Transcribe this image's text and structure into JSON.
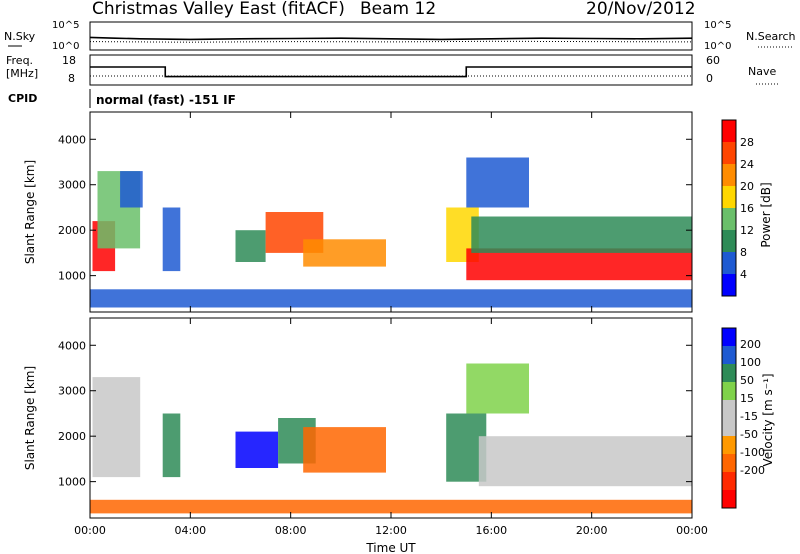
{
  "header": {
    "station": "Christmas Valley East (fitACF)",
    "beam": "Beam 12",
    "date": "20/Nov/2012"
  },
  "colors": {
    "power_scale": [
      "#0000ff",
      "#1e5ad2",
      "#2e8b57",
      "#6abf6a",
      "#ffd700",
      "#ff8c00",
      "#ff4500",
      "#ff0000"
    ],
    "velocity_scale": [
      "#0000ff",
      "#1e5ad2",
      "#2e8b57",
      "#7fd24a",
      "#c8c8c8",
      "#c8c8c8",
      "#ff9900",
      "#ff6600",
      "#ff2a00",
      "#ff0000"
    ]
  },
  "chart_data": [
    {
      "id": "nsky-nsearch",
      "type": "line",
      "left_label": "N.Sky",
      "right_label": "N.Search",
      "left_ticks": [
        "10^5",
        "10^0"
      ],
      "right_ticks": [
        "10^5",
        "10^0"
      ],
      "series": [
        {
          "name": "N.Sky",
          "style": "solid",
          "x": [
            0,
            1,
            2,
            4,
            6,
            8,
            10,
            12,
            14,
            16,
            18,
            20,
            22,
            24
          ],
          "y": [
            0.45,
            0.42,
            0.4,
            0.38,
            0.4,
            0.41,
            0.42,
            0.4,
            0.38,
            0.4,
            0.42,
            0.41,
            0.4,
            0.42
          ]
        },
        {
          "name": "N.Search",
          "style": "dotted",
          "x": [
            0,
            4,
            8,
            12,
            16,
            20,
            24
          ],
          "y": [
            0.3,
            0.28,
            0.3,
            0.29,
            0.31,
            0.3,
            0.29
          ]
        }
      ]
    },
    {
      "id": "freq-nave",
      "type": "line",
      "left_label": "Freq.",
      "left_unit": "[MHz]",
      "right_label": "Nave",
      "left_ticks": [
        "18",
        "8"
      ],
      "right_ticks": [
        "60",
        "0"
      ],
      "series": [
        {
          "name": "Freq.",
          "style": "solid",
          "x": [
            0,
            3.0,
            3.0,
            15.0,
            15.0,
            24
          ],
          "y": [
            14,
            14,
            10.8,
            10.8,
            14,
            14
          ]
        },
        {
          "name": "Nave",
          "style": "dotted",
          "x": [
            0,
            24
          ],
          "y": [
            18,
            18
          ]
        }
      ]
    },
    {
      "id": "cpid",
      "type": "table",
      "label": "CPID",
      "text": "normal (fast) -151 IF"
    },
    {
      "id": "power",
      "type": "heatmap",
      "ylabel": "Slant Range [km]",
      "yticks": [
        1000,
        2000,
        3000,
        4000
      ],
      "ylim": [
        200,
        4600
      ],
      "xlim": [
        0,
        24
      ],
      "colorbar_label": "Power [dB]",
      "colorbar_ticks": [
        4,
        8,
        12,
        16,
        20,
        24,
        28
      ],
      "colorbar_range": [
        0,
        32
      ],
      "regions": [
        {
          "x0": 0.1,
          "x1": 1.0,
          "y0": 1100,
          "y1": 2200,
          "v": 28
        },
        {
          "x0": 0.3,
          "x1": 2.0,
          "y0": 1600,
          "y1": 3300,
          "v": 12
        },
        {
          "x0": 1.2,
          "x1": 2.1,
          "y0": 2500,
          "y1": 3300,
          "v": 6
        },
        {
          "x0": 2.9,
          "x1": 3.6,
          "y0": 1100,
          "y1": 2500,
          "v": 6
        },
        {
          "x0": 5.8,
          "x1": 7.0,
          "y0": 1300,
          "y1": 2000,
          "v": 8
        },
        {
          "x0": 7.0,
          "x1": 9.3,
          "y0": 1500,
          "y1": 2400,
          "v": 26
        },
        {
          "x0": 8.5,
          "x1": 11.8,
          "y0": 1200,
          "y1": 1800,
          "v": 22
        },
        {
          "x0": 14.2,
          "x1": 15.5,
          "y0": 1300,
          "y1": 2500,
          "v": 18
        },
        {
          "x0": 15.0,
          "x1": 24.0,
          "y0": 900,
          "y1": 1600,
          "v": 28
        },
        {
          "x0": 15.2,
          "x1": 24.0,
          "y0": 1500,
          "y1": 2300,
          "v": 10
        },
        {
          "x0": 15.0,
          "x1": 17.5,
          "y0": 2500,
          "y1": 3600,
          "v": 6
        },
        {
          "x0": 0.0,
          "x1": 24.0,
          "y0": 300,
          "y1": 700,
          "v": 4
        }
      ]
    },
    {
      "id": "velocity",
      "type": "heatmap",
      "ylabel": "Slant Range [km]",
      "yticks": [
        1000,
        2000,
        3000,
        4000
      ],
      "ylim": [
        200,
        4600
      ],
      "xlim": [
        0,
        24
      ],
      "xticks": [
        "00:00",
        "04:00",
        "08:00",
        "12:00",
        "16:00",
        "20:00",
        "00:00"
      ],
      "xlabel": "Time UT",
      "colorbar_label": "Velocity [m s⁻¹]",
      "colorbar_ticks": [
        200,
        100,
        50,
        15,
        -15,
        -50,
        -100,
        -200
      ],
      "regions": [
        {
          "x0": 0.1,
          "x1": 2.0,
          "y0": 1100,
          "y1": 3300,
          "v": 0
        },
        {
          "x0": 2.9,
          "x1": 3.6,
          "y0": 1100,
          "y1": 2500,
          "v": 60
        },
        {
          "x0": 5.8,
          "x1": 7.5,
          "y0": 1300,
          "y1": 2100,
          "v": 180
        },
        {
          "x0": 7.5,
          "x1": 9.0,
          "y0": 1400,
          "y1": 2400,
          "v": 40
        },
        {
          "x0": 8.5,
          "x1": 11.8,
          "y0": 1200,
          "y1": 2200,
          "v": -60
        },
        {
          "x0": 14.2,
          "x1": 15.8,
          "y0": 1000,
          "y1": 2500,
          "v": 40
        },
        {
          "x0": 15.5,
          "x1": 24.0,
          "y0": 900,
          "y1": 2000,
          "v": 0
        },
        {
          "x0": 15.0,
          "x1": 17.5,
          "y0": 2500,
          "y1": 3600,
          "v": 30
        },
        {
          "x0": 0.0,
          "x1": 24.0,
          "y0": 300,
          "y1": 600,
          "v": -60
        }
      ]
    }
  ]
}
